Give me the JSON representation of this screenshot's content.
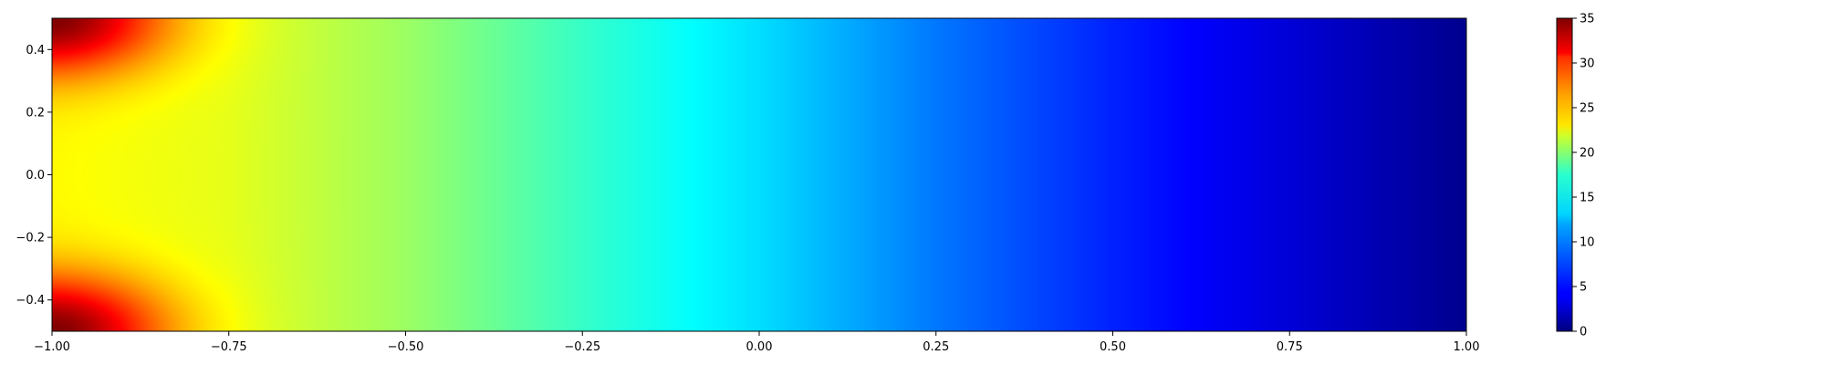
{
  "chart_data": {
    "type": "heatmap",
    "title": "",
    "xlabel": "",
    "ylabel": "",
    "xlim": [
      -1.0,
      1.0
    ],
    "ylim": [
      -0.5,
      0.5
    ],
    "x_ticks": [
      -1.0,
      -0.75,
      -0.5,
      -0.25,
      0.0,
      0.25,
      0.5,
      0.75,
      1.0
    ],
    "x_tick_labels": [
      "−1.00",
      "−0.75",
      "−0.50",
      "−0.25",
      "0.00",
      "0.25",
      "0.50",
      "0.75",
      "1.00"
    ],
    "y_ticks": [
      0.4,
      0.2,
      0.0,
      -0.2,
      -0.4
    ],
    "y_tick_labels": [
      "0.4",
      "0.2",
      "0.0",
      "−0.2",
      "−0.4"
    ],
    "colormap": "jet",
    "colorbar": {
      "range": [
        0,
        35
      ],
      "ticks": [
        35,
        30,
        25,
        20,
        15,
        10,
        5,
        0
      ],
      "tick_labels": [
        "35",
        "30",
        "25",
        "20",
        "15",
        "10",
        "5",
        "0"
      ]
    },
    "field": {
      "description_x_profile": [
        {
          "x": -1.0,
          "value": 22
        },
        {
          "x": -0.75,
          "value": 21
        },
        {
          "x": -0.5,
          "value": 18.5
        },
        {
          "x": -0.25,
          "value": 15
        },
        {
          "x": 0.0,
          "value": 12
        },
        {
          "x": 0.25,
          "value": 8.5
        },
        {
          "x": 0.5,
          "value": 5.5
        },
        {
          "x": 0.75,
          "value": 3
        },
        {
          "x": 1.0,
          "value": 0.5
        }
      ],
      "hot_spots": [
        {
          "x": -1.0,
          "y": 0.5,
          "value": 35
        },
        {
          "x": -1.0,
          "y": -0.5,
          "value": 35
        }
      ]
    }
  }
}
